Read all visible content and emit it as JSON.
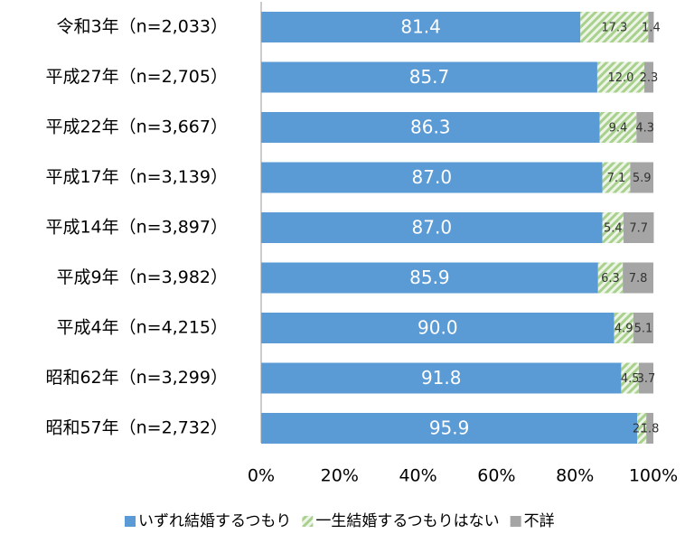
{
  "chart_data": {
    "type": "stacked_bar_horizontal",
    "categories": [
      "令和3年（n=2,033）",
      "平成27年（n=2,705）",
      "平成22年（n=3,667）",
      "平成17年（n=3,139）",
      "平成14年（n=3,897）",
      "平成9年（n=3,982）",
      "平成4年（n=4,215）",
      "昭和62年（n=3,299）",
      "昭和57年（n=2,732）"
    ],
    "series": [
      {
        "name": "いずれ結婚するつもり",
        "color": "#5b9bd5",
        "values": [
          81.4,
          85.7,
          86.3,
          87.0,
          87.0,
          85.9,
          90.0,
          91.8,
          95.9
        ],
        "value_labels": [
          "81.4",
          "85.7",
          "86.3",
          "87.0",
          "87.0",
          "85.9",
          "90.0",
          "91.8",
          "95.9"
        ]
      },
      {
        "name": "一生結婚するつもりはない",
        "color": "#a9d18e",
        "pattern": "hatch",
        "values": [
          17.3,
          12.0,
          9.4,
          7.1,
          5.4,
          6.3,
          4.9,
          4.5,
          2.3
        ],
        "value_labels": [
          "17.3",
          "12.0",
          "9.4",
          "7.1",
          "5.4",
          "6.3",
          "4.9",
          "4.5",
          "2.3"
        ]
      },
      {
        "name": "不詳",
        "color": "#a5a5a5",
        "values": [
          1.4,
          2.3,
          4.3,
          5.9,
          7.7,
          7.8,
          5.1,
          3.7,
          1.8
        ],
        "value_labels": [
          "1.4",
          "2.3",
          "4.3",
          "5.9",
          "7.7",
          "7.8",
          "5.1",
          "3.7",
          "1.8"
        ]
      }
    ],
    "xlim": [
      0,
      100
    ],
    "xticks": [
      {
        "value": 0,
        "label": "0%"
      },
      {
        "value": 20,
        "label": "20%"
      },
      {
        "value": 40,
        "label": "40%"
      },
      {
        "value": 60,
        "label": "60%"
      },
      {
        "value": 80,
        "label": "80%"
      },
      {
        "value": 100,
        "label": "100%"
      }
    ],
    "legend": "bottom"
  }
}
